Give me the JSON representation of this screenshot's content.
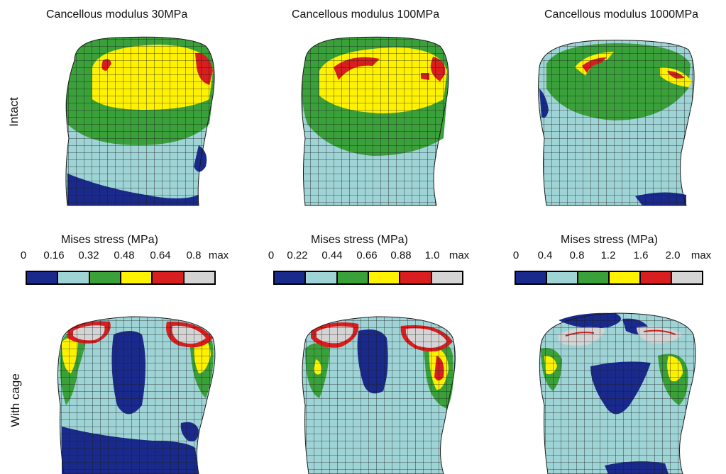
{
  "columns": [
    {
      "title": "Cancellous modulus 30MPa"
    },
    {
      "title": "Cancellous modulus 100MPa"
    },
    {
      "title": "Cancellous modulus 1000MPa"
    }
  ],
  "rows": [
    {
      "label": "Intact"
    },
    {
      "label": "With cage"
    }
  ],
  "legends": [
    {
      "title": "Mises stress (MPa)",
      "ticks": [
        "0",
        "0.16",
        "0.32",
        "0.48",
        "0.64",
        "0.8",
        "max"
      ]
    },
    {
      "title": "Mises stress (MPa)",
      "ticks": [
        "0",
        "0.22",
        "0.44",
        "0.66",
        "0.88",
        "1.0",
        "max"
      ]
    },
    {
      "title": "Mises stress (MPa)",
      "ticks": [
        "0",
        "0.4",
        "0.8",
        "1.2",
        "1.6",
        "2.0",
        "max"
      ]
    }
  ],
  "colors": {
    "band1": "#1a2a8c",
    "band2": "#9fd4d6",
    "band3": "#3aa13a",
    "band4": "#fff200",
    "band5": "#d81e1e",
    "band6": "#d4d4d4",
    "mesh": "#1a1a1a"
  }
}
